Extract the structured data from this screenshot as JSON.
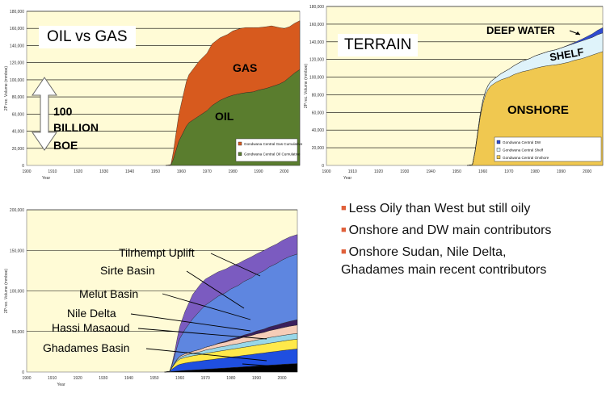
{
  "chart_data": [
    {
      "type": "area",
      "title": "OIL vs GAS",
      "xlabel": "Year",
      "ylabel": "2P rec. Volume (mmboe)",
      "xlim": [
        1900,
        2006
      ],
      "ylim": [
        0,
        180000
      ],
      "x_ticks": [
        "1900",
        "1910",
        "1920",
        "1930",
        "1940",
        "1950",
        "1960",
        "1970",
        "1980",
        "1990",
        "2000"
      ],
      "y_ticks": [
        "0",
        "20,000",
        "40,000",
        "60,000",
        "80,000",
        "100,000",
        "120,000",
        "140,000",
        "160,000",
        "180,000"
      ],
      "stacked": true,
      "x": [
        1954,
        1956,
        1957,
        1958,
        1959,
        1960,
        1961,
        1962,
        1963,
        1965,
        1967,
        1970,
        1972,
        1975,
        1978,
        1980,
        1983,
        1985,
        1988,
        1990,
        1993,
        1995,
        1998,
        2000,
        2002,
        2004,
        2006
      ],
      "series": [
        {
          "name": "Gondwana Central Oil Cumulative",
          "color": "#5a7d2e",
          "values": [
            0,
            500,
            8000,
            18000,
            28000,
            34000,
            40000,
            46000,
            50000,
            54000,
            58000,
            64000,
            70000,
            76000,
            80000,
            82000,
            84000,
            85000,
            86000,
            88000,
            90000,
            92000,
            95000,
            98000,
            103000,
            108000,
            112000
          ]
        },
        {
          "name": "Gondwana Central Gas Cumulative",
          "color": "#d75a1e",
          "values": [
            0,
            500,
            9000,
            20000,
            30000,
            38000,
            45000,
            52000,
            56000,
            60000,
            64000,
            67000,
            72000,
            73000,
            73000,
            75000,
            76000,
            76000,
            75000,
            73000,
            72000,
            71000,
            66000,
            62000,
            59000,
            58000,
            57000
          ]
        }
      ],
      "area_labels": [
        "GAS",
        "OIL"
      ],
      "annotation": [
        "100",
        "BILLION",
        "BOE"
      ]
    },
    {
      "type": "area",
      "title": "TERRAIN",
      "xlabel": "Year",
      "ylabel": "2P rec. Volume (mmboe)",
      "xlim": [
        1900,
        2006
      ],
      "ylim": [
        0,
        180000
      ],
      "x_ticks": [
        "1900",
        "1910",
        "1920",
        "1930",
        "1940",
        "1950",
        "1960",
        "1970",
        "1980",
        "1990",
        "2000"
      ],
      "y_ticks": [
        "0",
        "20,000",
        "40,000",
        "60,000",
        "80,000",
        "100,000",
        "120,000",
        "140,000",
        "160,000",
        "180,000"
      ],
      "stacked": true,
      "x": [
        1954,
        1956,
        1957,
        1958,
        1959,
        1960,
        1961,
        1962,
        1963,
        1965,
        1967,
        1970,
        1972,
        1975,
        1978,
        1980,
        1983,
        1985,
        1988,
        1990,
        1993,
        1995,
        1998,
        2000,
        2002,
        2004,
        2006
      ],
      "series": [
        {
          "name": "Gondwana Central Onshore",
          "color": "#f0c850",
          "values": [
            0,
            800,
            15000,
            35000,
            55000,
            70000,
            80000,
            86000,
            90000,
            94000,
            97000,
            100000,
            103000,
            106000,
            108000,
            110000,
            112000,
            113000,
            114000,
            115000,
            117000,
            119000,
            121000,
            123000,
            125000,
            127000,
            129000
          ]
        },
        {
          "name": "Gondwana Central Shelf",
          "color": "#dff3fa",
          "values": [
            0,
            100,
            1000,
            2000,
            3000,
            3500,
            4000,
            4500,
            5000,
            5500,
            7000,
            9000,
            10000,
            12000,
            13000,
            14000,
            15000,
            16000,
            17000,
            18000,
            19000,
            19000,
            20000,
            20000,
            20000,
            21000,
            21000
          ]
        },
        {
          "name": "Gondwana Central DW",
          "color": "#2f4bd0",
          "values": [
            0,
            0,
            0,
            0,
            0,
            0,
            0,
            0,
            0,
            0,
            0,
            0,
            0,
            0,
            0,
            0,
            0,
            0,
            0,
            0,
            500,
            1000,
            2000,
            3000,
            4000,
            5000,
            6000
          ]
        }
      ],
      "area_labels": [
        "DEEP WATER",
        "SHELF",
        "ONSHORE"
      ]
    },
    {
      "type": "area",
      "xlabel": "Year",
      "ylabel": "2P rec. Volume (mmboe)",
      "xlim": [
        1900,
        2006
      ],
      "ylim": [
        0,
        200000
      ],
      "x_ticks": [
        "1900",
        "1910",
        "1920",
        "1930",
        "1940",
        "1950",
        "1960",
        "1970",
        "1980",
        "1990",
        "2000"
      ],
      "y_ticks": [
        "0",
        "50,000",
        "100,000",
        "150,000",
        "200,000"
      ],
      "stacked": true,
      "x": [
        1954,
        1956,
        1957,
        1958,
        1959,
        1960,
        1962,
        1965,
        1968,
        1970,
        1973,
        1975,
        1978,
        1980,
        1983,
        1985,
        1988,
        1990,
        1993,
        1995,
        1998,
        2000,
        2003,
        2006
      ],
      "series": [
        {
          "color": "#000000",
          "values": [
            0,
            200,
            800,
            1000,
            1200,
            1500,
            2000,
            2500,
            3000,
            3500,
            4000,
            4500,
            5000,
            5500,
            6000,
            6500,
            7000,
            7500,
            8000,
            8500,
            9000,
            9500,
            10000,
            10500
          ]
        },
        {
          "color": "#1f4fe0",
          "values": [
            0,
            300,
            3000,
            5000,
            7000,
            8000,
            9000,
            10000,
            10500,
            11000,
            11500,
            12000,
            12500,
            13000,
            13500,
            14000,
            14500,
            15000,
            15500,
            16000,
            16500,
            17000,
            17500,
            18000
          ]
        },
        {
          "color": "#ffe94a",
          "values": [
            0,
            200,
            2000,
            4000,
            5500,
            6500,
            7000,
            7500,
            8000,
            8500,
            9000,
            9000,
            9500,
            9500,
            10000,
            10000,
            10500,
            10500,
            11000,
            11000,
            11500,
            11500,
            12000,
            12000
          ]
        },
        {
          "color": "#99d7e8",
          "values": [
            0,
            0,
            500,
            1000,
            1500,
            2000,
            2500,
            3000,
            3500,
            4000,
            4500,
            5000,
            5000,
            5500,
            5500,
            6000,
            6000,
            6500,
            6500,
            7000,
            7000,
            7000,
            7000,
            7000
          ]
        },
        {
          "color": "#f6cdb8",
          "values": [
            0,
            0,
            0,
            500,
            1000,
            1500,
            2000,
            2500,
            3000,
            3500,
            4000,
            4500,
            5000,
            5500,
            6000,
            6500,
            7000,
            7500,
            8000,
            8500,
            9000,
            9500,
            10000,
            10500
          ]
        },
        {
          "color": "#3a1f5c",
          "values": [
            0,
            0,
            0,
            0,
            0,
            0,
            0,
            0,
            0,
            0,
            0,
            500,
            1000,
            1500,
            2000,
            2500,
            3000,
            3500,
            4000,
            4500,
            5000,
            5500,
            6000,
            6500
          ]
        },
        {
          "color": "#5e86e0",
          "values": [
            0,
            200,
            3000,
            9000,
            16000,
            22000,
            30000,
            40000,
            48000,
            52000,
            56000,
            58000,
            60000,
            62000,
            64000,
            66000,
            68000,
            70000,
            72000,
            74000,
            76000,
            78000,
            80000,
            81000
          ]
        },
        {
          "color": "#7b5bc0",
          "values": [
            0,
            100,
            2000,
            5000,
            10000,
            15000,
            22000,
            30000,
            32000,
            32000,
            31000,
            30000,
            29000,
            28000,
            27000,
            26000,
            26000,
            25000,
            25000,
            24000,
            24000,
            24000,
            24000,
            24000
          ]
        }
      ],
      "area_labels": [
        "Tilrhempt Uplift",
        "Sirte Basin",
        "Melut Basin",
        "Nile Delta",
        "Hassi Masaoud",
        "Ghadames Basin"
      ]
    }
  ],
  "bullets": [
    "Less Oily than West but still oily",
    "Onshore and DW main contributors",
    "Onshore Sudan, Nile Delta,",
    "Ghadames main recent contributors"
  ]
}
